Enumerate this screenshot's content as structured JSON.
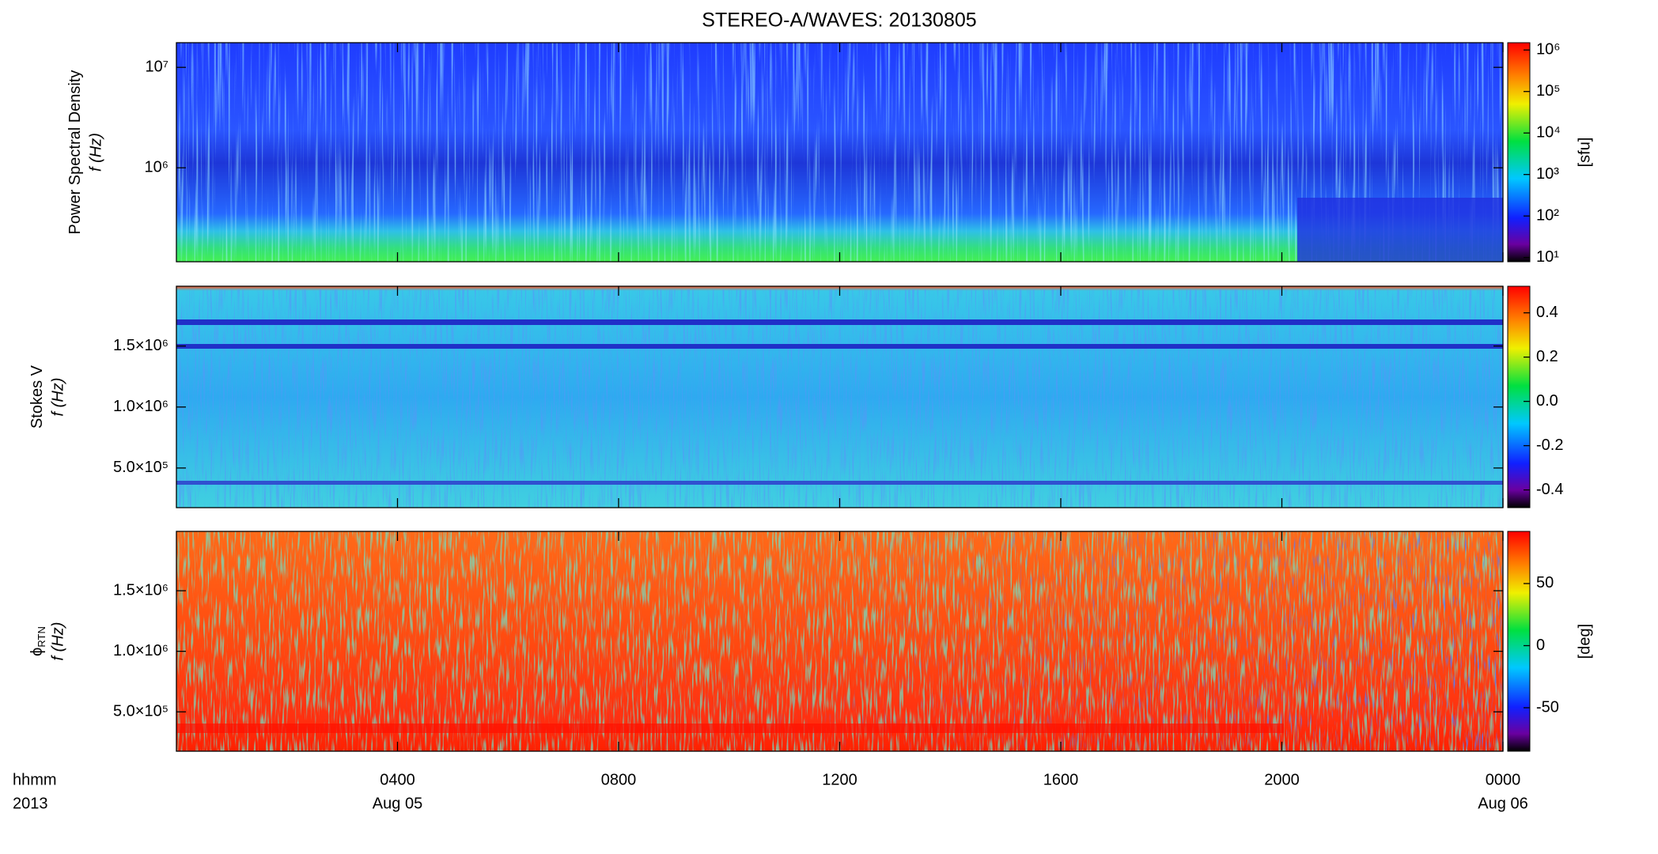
{
  "title": "STEREO-A/WAVES: 20130805",
  "chart_data": [
    {
      "type": "heatmap",
      "ylabel": "Power Spectral Density",
      "ylabel_unit": "f (Hz)",
      "yscale": "log",
      "ylim": [
        116000,
        17600000
      ],
      "yticks": [
        {
          "value": 1000000,
          "label": "10⁶"
        },
        {
          "value": 10000000,
          "label": "10⁷"
        }
      ],
      "colorbar": {
        "scale": "log",
        "lim": [
          7.9,
          1500000
        ],
        "label": "[sfu]",
        "ticks": [
          {
            "value": 10,
            "label": "10¹"
          },
          {
            "value": 100,
            "label": "10²"
          },
          {
            "value": 1000,
            "label": "10³"
          },
          {
            "value": 10000,
            "label": "10⁴"
          },
          {
            "value": 100000,
            "label": "10⁵"
          },
          {
            "value": 1000000,
            "label": "10⁶"
          }
        ]
      }
    },
    {
      "type": "heatmap",
      "ylabel": "Stokes V",
      "ylabel_unit": "f (Hz)",
      "yscale": "linear",
      "ylim": [
        175000,
        1990000
      ],
      "yticks": [
        {
          "value": 500000,
          "label": "5.0×10⁵"
        },
        {
          "value": 1000000,
          "label": "1.0×10⁶"
        },
        {
          "value": 1500000,
          "label": "1.5×10⁶"
        }
      ],
      "colorbar": {
        "scale": "linear",
        "lim": [
          -0.48,
          0.52
        ],
        "ticks": [
          -0.4,
          -0.2,
          {
            "value": 0,
            "label": "0.0"
          },
          0.2,
          0.4
        ]
      }
    },
    {
      "type": "heatmap",
      "ylabel": "ϕ",
      "ylabel_sub": "RTN",
      "ylabel_unit": "f (Hz)",
      "yscale": "linear",
      "ylim": [
        175000,
        1990000
      ],
      "yticks": [
        {
          "value": 500000,
          "label": "5.0×10⁵"
        },
        {
          "value": 1000000,
          "label": "1.0×10⁶"
        },
        {
          "value": 1500000,
          "label": "1.5×10⁶"
        }
      ],
      "colorbar": {
        "scale": "linear",
        "lim": [
          -85,
          92
        ],
        "label": "[deg]",
        "ticks": [
          -50,
          0,
          50
        ]
      }
    }
  ],
  "x_axis": {
    "label": "hhmm",
    "year": "2013",
    "xlim": [
      0,
      24
    ],
    "xticks": [
      {
        "value": 4,
        "label": "0400"
      },
      {
        "value": 8,
        "label": "0800"
      },
      {
        "value": 12,
        "label": "1200"
      },
      {
        "value": 16,
        "label": "1600"
      },
      {
        "value": 20,
        "label": "2000"
      },
      {
        "value": 24,
        "label": "0000"
      }
    ],
    "date_labels": [
      {
        "value": 4,
        "label": "Aug 05"
      },
      {
        "value": 24,
        "label": "Aug 06"
      }
    ]
  }
}
